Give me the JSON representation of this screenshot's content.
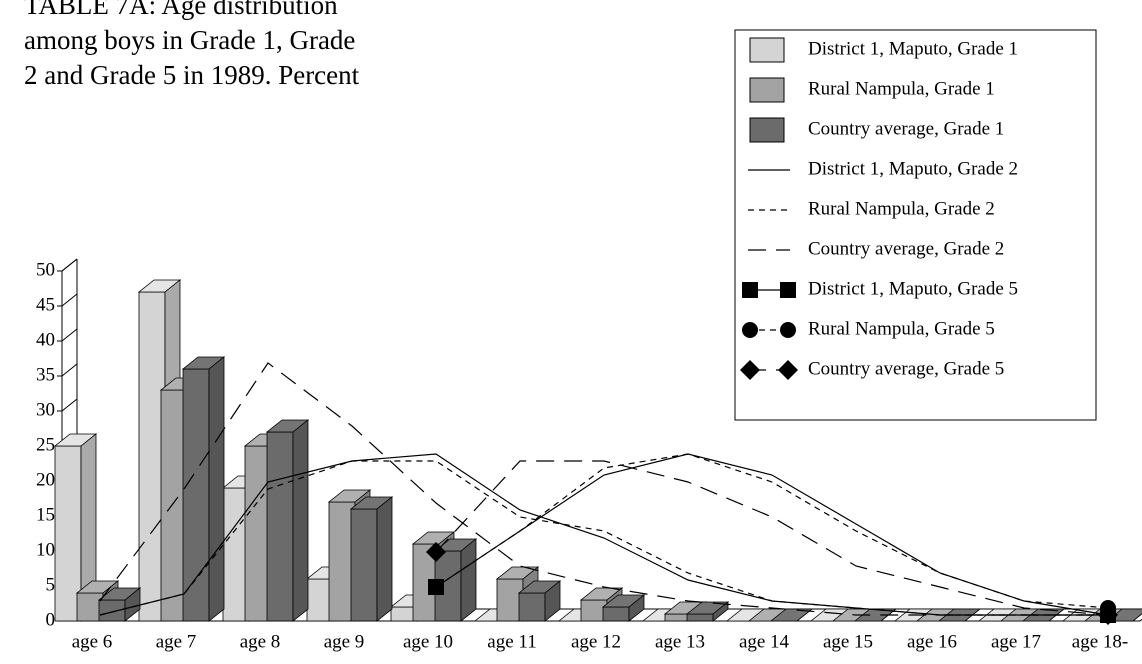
{
  "chart_data": {
    "type": "bar",
    "title": "TABLE 7A: Age distribution among boys in Grade 1, Grade 2 and Grade 5 in 1989. Percent",
    "categories": [
      "age 6",
      "age 7",
      "age 8",
      "age 9",
      "age 10",
      "age 11",
      "age 12",
      "age 13",
      "age 14",
      "age 15",
      "age 16",
      "age 17",
      "age 18-"
    ],
    "ylim": [
      0,
      50
    ],
    "yticks": [
      0,
      5,
      10,
      15,
      20,
      25,
      30,
      35,
      40,
      45,
      50
    ],
    "series": [
      {
        "name": "District 1, Maputo, Grade 1",
        "type": "bar",
        "color": "#d4d4d4",
        "values": [
          25,
          47,
          19,
          6,
          2,
          0,
          0,
          0,
          0,
          0,
          0,
          0,
          0
        ]
      },
      {
        "name": "Rural Nampula, Grade 1",
        "type": "bar",
        "color": "#a3a3a3",
        "values": [
          4,
          33,
          25,
          17,
          11,
          6,
          3,
          1,
          0,
          0,
          0,
          0,
          0
        ]
      },
      {
        "name": "Country average, Grade 1",
        "type": "bar",
        "color": "#6b6b6b",
        "values": [
          3,
          36,
          27,
          16,
          10,
          4,
          2,
          1,
          0,
          0,
          0,
          0,
          0
        ]
      },
      {
        "name": "District 1, Maputo, Grade 2",
        "type": "line",
        "color": "#000000",
        "dash": "none",
        "values": [
          0,
          3,
          19,
          22,
          23,
          15,
          11,
          5,
          2,
          1,
          0,
          0,
          0
        ]
      },
      {
        "name": "Rural Nampula, Grade 2",
        "type": "line",
        "color": "#000000",
        "dash": "6,5",
        "values": [
          0,
          3,
          18,
          22,
          22,
          14,
          12,
          6,
          2,
          1,
          0,
          0,
          0
        ]
      },
      {
        "name": "Country average, Grade 2",
        "type": "line",
        "color": "#000000",
        "dash": "18,10",
        "values": [
          2,
          18,
          36,
          27,
          16,
          7,
          4,
          2,
          1,
          0,
          0,
          0,
          0
        ]
      },
      {
        "name": "District 1, Maputo, Grade 5",
        "type": "line",
        "color": "#000000",
        "dash": "none",
        "marker": "square",
        "values": [
          null,
          null,
          null,
          null,
          4,
          12,
          20,
          23,
          20,
          13,
          6,
          2,
          0
        ]
      },
      {
        "name": "Rural Nampula, Grade 5",
        "type": "line",
        "color": "#000000",
        "dash": "6,5",
        "marker": "circle",
        "values": [
          null,
          null,
          null,
          null,
          4,
          12,
          21,
          23,
          19,
          12,
          6,
          2,
          1
        ]
      },
      {
        "name": "Country average, Grade 5",
        "type": "line",
        "color": "#000000",
        "dash": "18,10",
        "marker": "diamond",
        "values": [
          null,
          null,
          null,
          null,
          9,
          22,
          22,
          19,
          14,
          7,
          4,
          1,
          0
        ]
      }
    ]
  }
}
